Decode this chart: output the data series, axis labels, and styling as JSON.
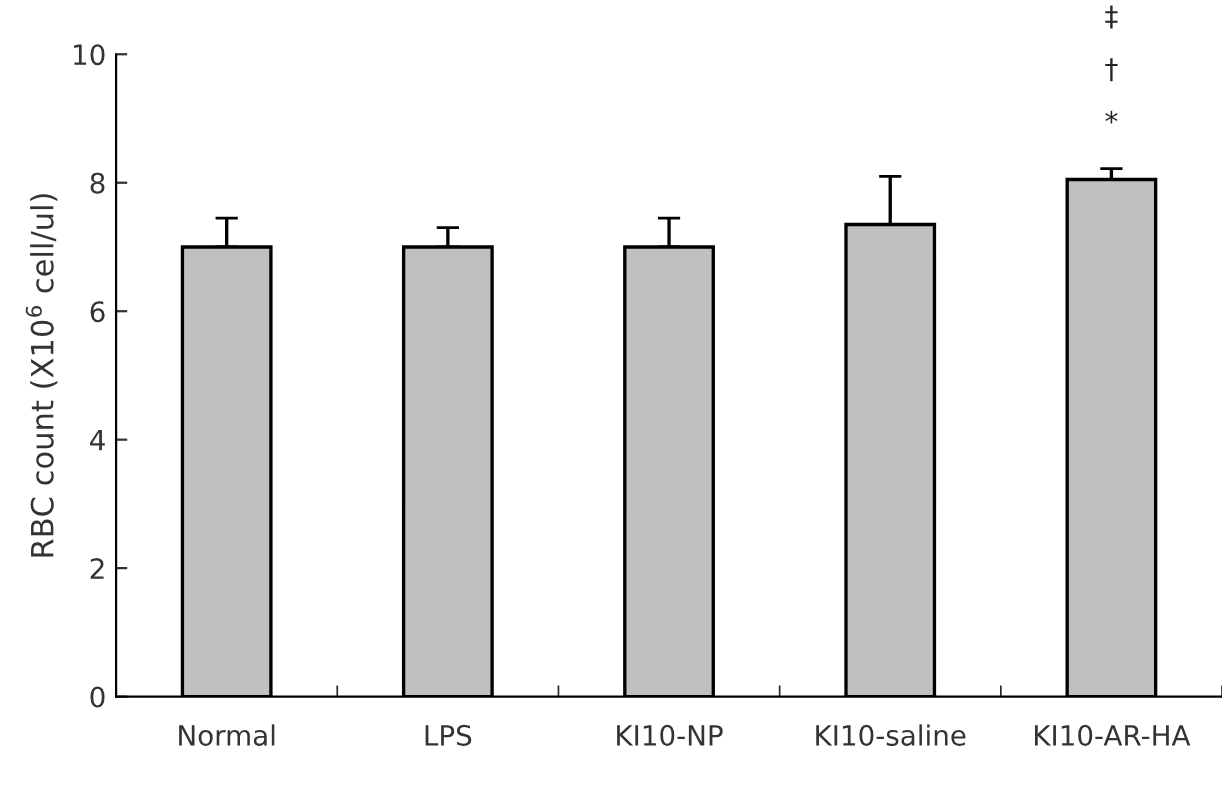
{
  "chart_data": {
    "type": "bar",
    "ylabel": "RBC count (X10$^{6}$ cell/ul)",
    "categories": [
      "Normal",
      "LPS",
      "KI10-NP",
      "KI10-saline",
      "KI10-AR-HA"
    ],
    "values": [
      7.0,
      7.0,
      7.0,
      7.35,
      8.05
    ],
    "errors": [
      [
        7.0,
        7.45
      ],
      [
        7.0,
        7.3
      ],
      [
        7.0,
        7.45
      ],
      [
        7.35,
        8.1
      ],
      [
        8.05,
        8.22
      ]
    ],
    "color": "#c0c0c0",
    "ylim": [
      0,
      10
    ],
    "yticks": [
      0,
      2,
      4,
      6,
      8,
      10
    ],
    "grid": false,
    "annotations": [
      "*",
      "†",
      "‡"
    ]
  }
}
